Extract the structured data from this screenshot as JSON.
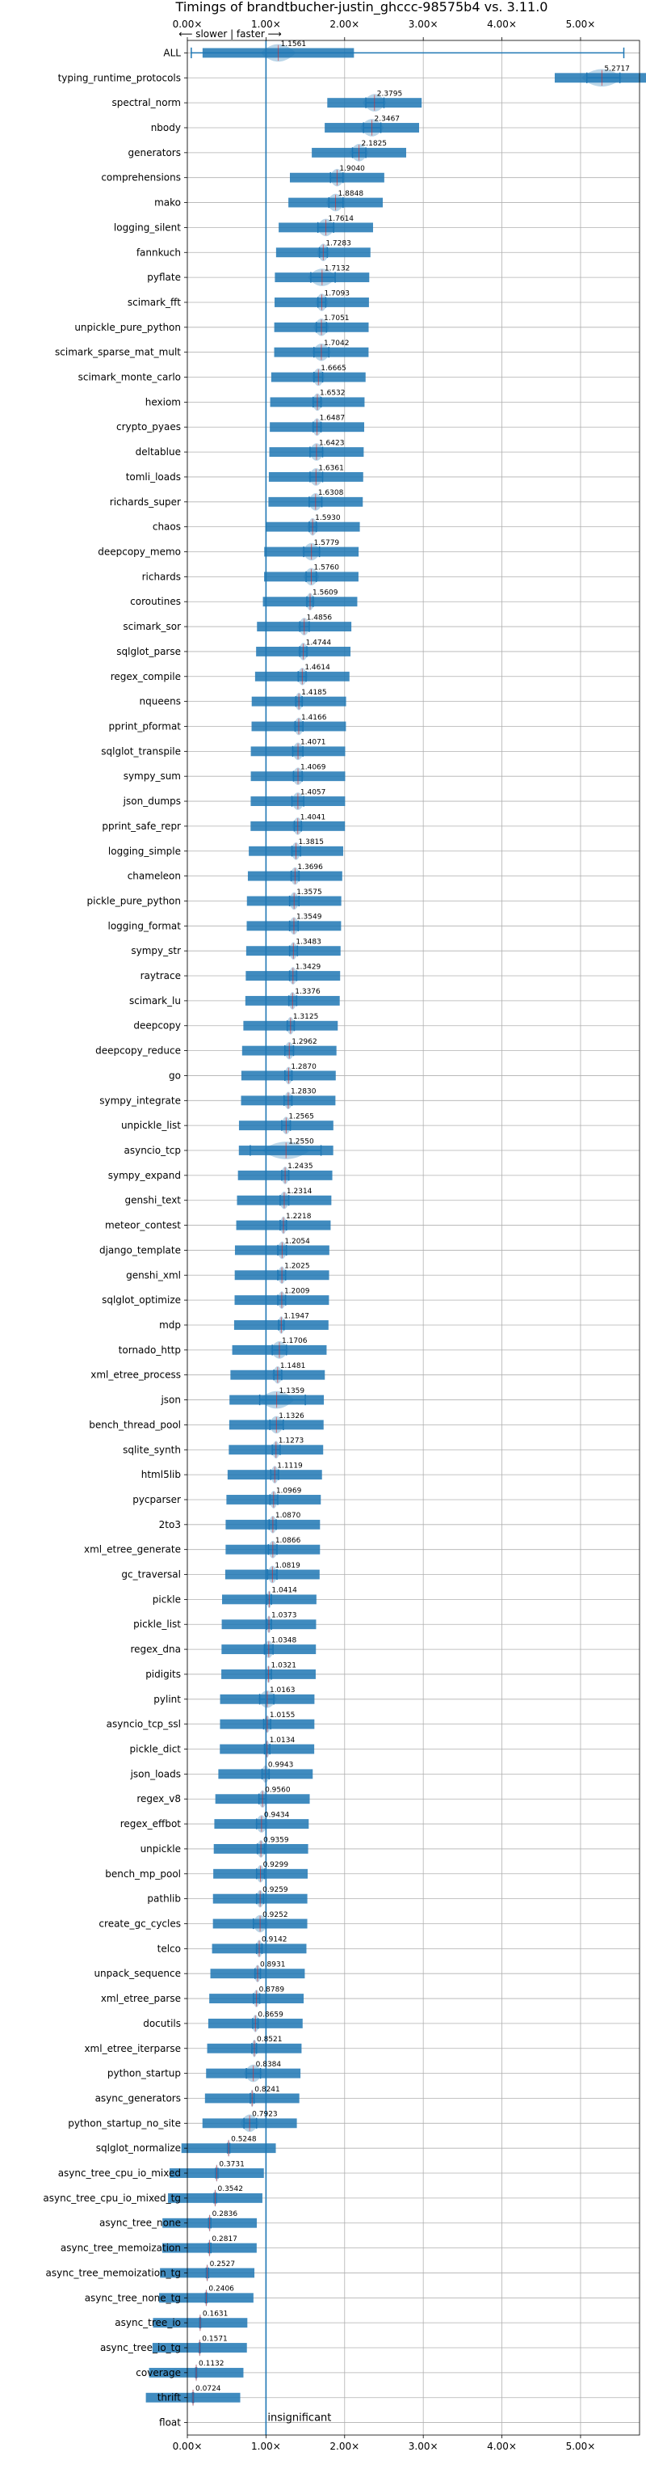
{
  "chart_data": {
    "type": "violin",
    "title": "Timings of brandtbucher-justin_ghccc-98575b4 vs. 3.11.0",
    "top_annotation": "⟵ slower | faster ⟶",
    "insignificant_label": "insignificant",
    "xlim": [
      0,
      5.75
    ],
    "reference_line": 1.0,
    "xticks": [
      0,
      1,
      2,
      3,
      4,
      5
    ],
    "xtick_labels": [
      "0.00×",
      "1.00×",
      "2.00×",
      "3.00×",
      "4.00×",
      "5.00×"
    ],
    "grid": true,
    "categories": [
      "ALL",
      "typing_runtime_protocols",
      "spectral_norm",
      "nbody",
      "generators",
      "comprehensions",
      "mako",
      "logging_silent",
      "fannkuch",
      "pyflate",
      "scimark_fft",
      "unpickle_pure_python",
      "scimark_sparse_mat_mult",
      "scimark_monte_carlo",
      "hexiom",
      "crypto_pyaes",
      "deltablue",
      "tomli_loads",
      "richards_super",
      "chaos",
      "deepcopy_memo",
      "richards",
      "coroutines",
      "scimark_sor",
      "sqlglot_parse",
      "regex_compile",
      "nqueens",
      "pprint_pformat",
      "sqlglot_transpile",
      "sympy_sum",
      "json_dumps",
      "pprint_safe_repr",
      "logging_simple",
      "chameleon",
      "pickle_pure_python",
      "logging_format",
      "sympy_str",
      "raytrace",
      "scimark_lu",
      "deepcopy",
      "deepcopy_reduce",
      "go",
      "sympy_integrate",
      "unpickle_list",
      "asyncio_tcp",
      "sympy_expand",
      "genshi_text",
      "meteor_contest",
      "django_template",
      "genshi_xml",
      "sqlglot_optimize",
      "mdp",
      "tornado_http",
      "xml_etree_process",
      "json",
      "bench_thread_pool",
      "sqlite_synth",
      "html5lib",
      "pycparser",
      "2to3",
      "xml_etree_generate",
      "gc_traversal",
      "pickle",
      "pickle_list",
      "regex_dna",
      "pidigits",
      "pylint",
      "asyncio_tcp_ssl",
      "pickle_dict",
      "json_loads",
      "regex_v8",
      "regex_effbot",
      "unpickle",
      "bench_mp_pool",
      "pathlib",
      "create_gc_cycles",
      "telco",
      "unpack_sequence",
      "xml_etree_parse",
      "docutils",
      "xml_etree_iterparse",
      "python_startup",
      "async_generators",
      "python_startup_no_site",
      "sqlglot_normalize",
      "async_tree_cpu_io_mixed",
      "async_tree_cpu_io_mixed_tg",
      "async_tree_none",
      "async_tree_memoization",
      "async_tree_memoization_tg",
      "async_tree_none_tg",
      "async_tree_io",
      "async_tree_io_tg",
      "coverage",
      "thrift",
      "float"
    ],
    "values": [
      1.1561,
      5.2717,
      2.3795,
      2.3467,
      2.1825,
      1.904,
      1.8848,
      1.7614,
      1.7283,
      1.7132,
      1.7093,
      1.7051,
      1.7042,
      1.6665,
      1.6532,
      1.6487,
      1.6423,
      1.6361,
      1.6308,
      1.593,
      1.5779,
      1.576,
      1.5609,
      1.4856,
      1.4744,
      1.4614,
      1.4185,
      1.4166,
      1.4071,
      1.4069,
      1.4057,
      1.4041,
      1.3815,
      1.3696,
      1.3575,
      1.3549,
      1.3483,
      1.3429,
      1.3376,
      1.3125,
      1.2962,
      1.287,
      1.283,
      1.2565,
      1.255,
      1.2435,
      1.2314,
      1.2218,
      1.2054,
      1.2025,
      1.2009,
      1.1947,
      1.1706,
      1.1481,
      1.1359,
      1.1326,
      1.1273,
      1.1119,
      1.0969,
      1.087,
      1.0866,
      1.0819,
      1.0414,
      1.0373,
      1.0348,
      1.0321,
      1.0163,
      1.0155,
      1.0134,
      0.9943,
      0.956,
      0.9434,
      0.9359,
      0.9299,
      0.9259,
      0.9252,
      0.9142,
      0.8931,
      0.8789,
      0.8659,
      0.8521,
      0.8384,
      0.8241,
      0.7923,
      0.5248,
      0.3731,
      0.3542,
      0.2836,
      0.2817,
      0.2527,
      0.2406,
      0.1631,
      0.1571,
      0.1132,
      0.0724,
      null
    ],
    "value_labels": [
      "1.1561",
      "5.2717",
      "2.3795",
      "2.3467",
      "2.1825",
      "1.9040",
      "1.8848",
      "1.7614",
      "1.7283",
      "1.7132",
      "1.7093",
      "1.7051",
      "1.7042",
      "1.6665",
      "1.6532",
      "1.6487",
      "1.6423",
      "1.6361",
      "1.6308",
      "1.5930",
      "1.5779",
      "1.5760",
      "1.5609",
      "1.4856",
      "1.4744",
      "1.4614",
      "1.4185",
      "1.4166",
      "1.4071",
      "1.4069",
      "1.4057",
      "1.4041",
      "1.3815",
      "1.3696",
      "1.3575",
      "1.3549",
      "1.3483",
      "1.3429",
      "1.3376",
      "1.3125",
      "1.2962",
      "1.2870",
      "1.2830",
      "1.2565",
      "1.2550",
      "1.2435",
      "1.2314",
      "1.2218",
      "1.2054",
      "1.2025",
      "1.2009",
      "1.1947",
      "1.1706",
      "1.1481",
      "1.1359",
      "1.1326",
      "1.1273",
      "1.1119",
      "1.0969",
      "1.0870",
      "1.0866",
      "1.0819",
      "1.0414",
      "1.0373",
      "1.0348",
      "1.0321",
      "1.0163",
      "1.0155",
      "1.0134",
      "0.9943",
      "0.9560",
      "0.9434",
      "0.9359",
      "0.9299",
      "0.9259",
      "0.9252",
      "0.9142",
      "0.8931",
      "0.8789",
      "0.8659",
      "0.8521",
      "0.8384",
      "0.8241",
      "0.7923",
      "0.5248",
      "0.3731",
      "0.3542",
      "0.2836",
      "0.2817",
      "0.2527",
      "0.2406",
      "0.1631",
      "0.1571",
      "0.1132",
      "0.0724",
      ""
    ],
    "error_ranges": [
      [
        0.05,
        5.55
      ],
      [
        5.08,
        5.5
      ],
      [
        2.27,
        2.5
      ],
      [
        2.24,
        2.46
      ],
      [
        2.1,
        2.27
      ],
      [
        1.82,
        1.98
      ],
      [
        1.8,
        1.98
      ],
      [
        1.66,
        1.86
      ],
      [
        1.68,
        1.78
      ],
      [
        1.57,
        1.88
      ],
      [
        1.66,
        1.76
      ],
      [
        1.64,
        1.77
      ],
      [
        1.61,
        1.8
      ],
      [
        1.61,
        1.72
      ],
      [
        1.6,
        1.7
      ],
      [
        1.6,
        1.7
      ],
      [
        1.56,
        1.72
      ],
      [
        1.56,
        1.72
      ],
      [
        1.55,
        1.71
      ],
      [
        1.55,
        1.64
      ],
      [
        1.48,
        1.68
      ],
      [
        1.51,
        1.64
      ],
      [
        1.52,
        1.6
      ],
      [
        1.43,
        1.55
      ],
      [
        1.43,
        1.52
      ],
      [
        1.41,
        1.51
      ],
      [
        1.38,
        1.46
      ],
      [
        1.37,
        1.47
      ],
      [
        1.34,
        1.47
      ],
      [
        1.35,
        1.46
      ],
      [
        1.33,
        1.48
      ],
      [
        1.36,
        1.45
      ],
      [
        1.33,
        1.44
      ],
      [
        1.32,
        1.42
      ],
      [
        1.3,
        1.42
      ],
      [
        1.3,
        1.41
      ],
      [
        1.3,
        1.4
      ],
      [
        1.3,
        1.39
      ],
      [
        1.29,
        1.39
      ],
      [
        1.27,
        1.36
      ],
      [
        1.24,
        1.35
      ],
      [
        1.24,
        1.33
      ],
      [
        1.23,
        1.33
      ],
      [
        1.2,
        1.31
      ],
      [
        0.8,
        1.7
      ],
      [
        1.2,
        1.29
      ],
      [
        1.18,
        1.29
      ],
      [
        1.18,
        1.26
      ],
      [
        1.15,
        1.26
      ],
      [
        1.15,
        1.25
      ],
      [
        1.15,
        1.25
      ],
      [
        1.16,
        1.23
      ],
      [
        1.08,
        1.26
      ],
      [
        1.1,
        1.2
      ],
      [
        0.92,
        1.5
      ],
      [
        1.05,
        1.22
      ],
      [
        1.08,
        1.18
      ],
      [
        1.06,
        1.16
      ],
      [
        1.05,
        1.15
      ],
      [
        1.04,
        1.13
      ],
      [
        1.03,
        1.14
      ],
      [
        1.02,
        1.14
      ],
      [
        1.01,
        1.07
      ],
      [
        1.01,
        1.07
      ],
      [
        0.98,
        1.09
      ],
      [
        1.0,
        1.07
      ],
      [
        0.92,
        1.1
      ],
      [
        0.97,
        1.06
      ],
      [
        0.98,
        1.05
      ],
      [
        0.95,
        1.04
      ],
      [
        0.91,
        1.0
      ],
      [
        0.88,
        1.0
      ],
      [
        0.89,
        0.98
      ],
      [
        0.88,
        0.98
      ],
      [
        0.88,
        0.97
      ],
      [
        0.84,
        1.0
      ],
      [
        0.88,
        0.95
      ],
      [
        0.86,
        0.93
      ],
      [
        0.84,
        0.92
      ],
      [
        0.83,
        0.9
      ],
      [
        0.82,
        0.88
      ],
      [
        0.75,
        0.93
      ],
      [
        0.8,
        0.85
      ],
      [
        0.72,
        0.88
      ],
      [
        0.51,
        0.54
      ],
      [
        0.36,
        0.39
      ],
      [
        0.34,
        0.37
      ],
      [
        0.27,
        0.3
      ],
      [
        0.27,
        0.3
      ],
      [
        0.24,
        0.27
      ],
      [
        0.23,
        0.25
      ],
      [
        0.155,
        0.17
      ],
      [
        0.15,
        0.165
      ],
      [
        0.105,
        0.12
      ],
      [
        0.065,
        0.08
      ],
      null
    ],
    "spreads": [
      0.22,
      0.26,
      0.15,
      0.15,
      0.12,
      0.1,
      0.12,
      0.12,
      0.08,
      0.18,
      0.08,
      0.1,
      0.12,
      0.08,
      0.07,
      0.07,
      0.1,
      0.1,
      0.1,
      0.07,
      0.12,
      0.1,
      0.06,
      0.08,
      0.07,
      0.07,
      0.06,
      0.07,
      0.08,
      0.08,
      0.09,
      0.07,
      0.07,
      0.07,
      0.07,
      0.07,
      0.06,
      0.06,
      0.06,
      0.06,
      0.07,
      0.06,
      0.06,
      0.07,
      0.3,
      0.06,
      0.07,
      0.05,
      0.07,
      0.06,
      0.06,
      0.05,
      0.12,
      0.07,
      0.22,
      0.1,
      0.06,
      0.06,
      0.06,
      0.06,
      0.07,
      0.07,
      0.04,
      0.04,
      0.07,
      0.04,
      0.12,
      0.05,
      0.04,
      0.06,
      0.06,
      0.08,
      0.06,
      0.06,
      0.06,
      0.1,
      0.05,
      0.05,
      0.05,
      0.05,
      0.04,
      0.12,
      0.03,
      0.12,
      0.02,
      0.02,
      0.02,
      0.02,
      0.02,
      0.02,
      0.02,
      0.015,
      0.015,
      0.015,
      0.015,
      0
    ]
  }
}
